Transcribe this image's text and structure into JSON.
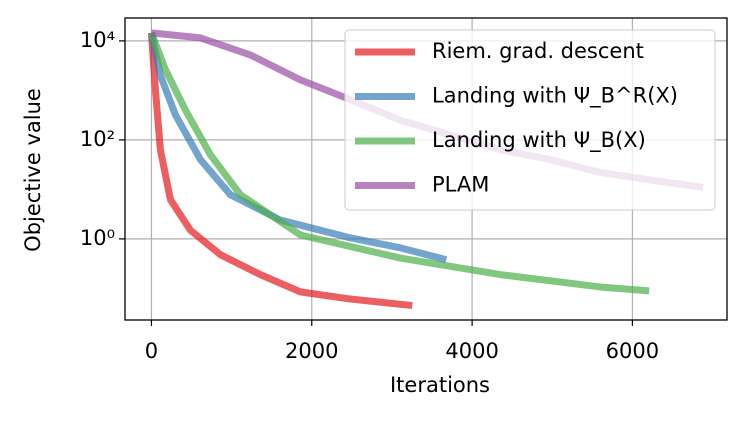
{
  "chart_data": {
    "type": "line",
    "xlabel": "Iterations",
    "ylabel": "Objective value",
    "xlim": [
      -330,
      7180
    ],
    "ylim": [
      0.023,
      29000
    ],
    "log_y": true,
    "grid": true,
    "legend": "upper right",
    "xticks": [
      0,
      2000,
      4000,
      6000
    ],
    "yticks": [
      {
        "value": 1,
        "label": "10⁰"
      },
      {
        "value": 100,
        "label": "10²"
      },
      {
        "value": 10000,
        "label": "10⁴"
      }
    ],
    "series": [
      {
        "name": "Riem. grad. descent",
        "color": "#e41a1c",
        "x": [
          0,
          50,
          112,
          237,
          486,
          860,
          1359,
          1858,
          2481,
          3254
        ],
        "values": [
          14500,
          1000,
          63,
          6.2,
          1.5,
          0.48,
          0.19,
          0.085,
          0.061,
          0.045
        ]
      },
      {
        "name": "Landing with Ψ_B^R(X)",
        "color": "#377eb8",
        "x": [
          0,
          112,
          299,
          611,
          985,
          1608,
          2481,
          3105,
          3678
        ],
        "values": [
          14500,
          2000,
          320,
          40,
          7.8,
          2.4,
          1.05,
          0.66,
          0.38
        ]
      },
      {
        "name": "Landing with Ψ_B(X)",
        "color": "#4daf4a",
        "x": [
          0,
          175,
          424,
          736,
          1110,
          1858,
          3105,
          4352,
          5599,
          6209
        ],
        "values": [
          14500,
          2600,
          400,
          50,
          7.8,
          1.2,
          0.41,
          0.19,
          0.107,
          0.089
        ]
      },
      {
        "name": "PLAM",
        "color": "#984ea3",
        "x": [
          0,
          611,
          1234,
          1858,
          2481,
          3105,
          3728,
          4352,
          4975,
          5599,
          6222,
          6883
        ],
        "values": [
          14500,
          11500,
          5200,
          1630,
          650,
          250,
          126,
          63,
          40,
          22,
          15.5,
          11
        ]
      }
    ]
  }
}
